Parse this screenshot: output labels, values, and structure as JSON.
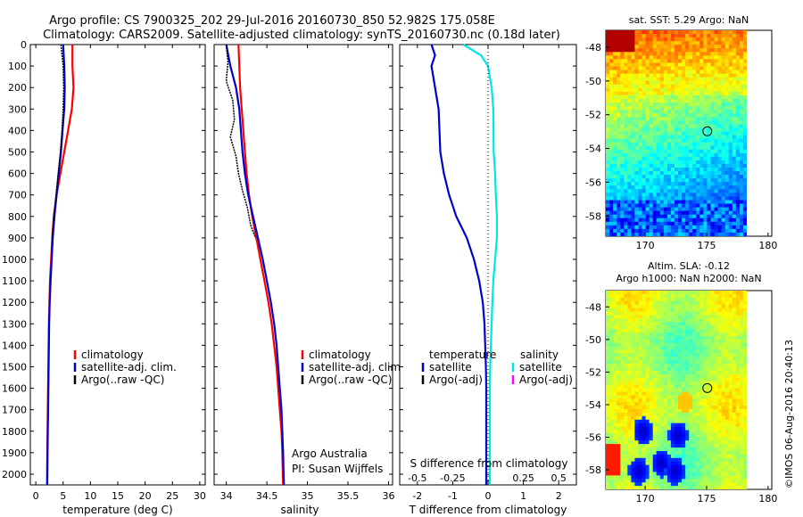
{
  "header": {
    "title_line1": "Argo profile: CS 7900325_202 29-Jul-2016 20160730_850 52.982S 175.058E",
    "title_line2": "Climatology: CARS2009. Satellite-adjusted climatology: synTS_20160730.nc (0.18d later)"
  },
  "footer_stamp": "©IMOS 06-Aug-2016 20:40:13",
  "colors": {
    "climatology": "#ff0000",
    "satellite": "#0000cc",
    "argo": "#000000",
    "salinity_sat": "#00e5e5",
    "salinity_argo": "#ff00ff"
  },
  "chart_data": [
    {
      "type": "line",
      "panel": "temperature",
      "xlabel": "temperature (deg C)",
      "ylabel": "",
      "xlim": [
        -1,
        31
      ],
      "ylim": [
        2050,
        0
      ],
      "xticks": [
        0,
        5,
        10,
        15,
        20,
        25,
        30
      ],
      "yticks": [
        0,
        100,
        200,
        300,
        400,
        500,
        600,
        700,
        800,
        900,
        1000,
        1100,
        1200,
        1300,
        1400,
        1500,
        1600,
        1700,
        1800,
        1900,
        2000
      ],
      "legend": [
        "climatology",
        "satellite-adj. clim.",
        "Argo(..raw -QC)"
      ],
      "legend_position": "bottom-right",
      "series": [
        {
          "name": "climatology",
          "color": "#ff0000",
          "x": [
            6.7,
            6.7,
            6.9,
            6.6,
            5.9,
            5.2,
            4.5,
            3.8,
            3.3,
            3.0,
            2.8,
            2.6,
            2.5,
            2.4,
            2.35,
            2.3,
            2.25,
            2.2,
            2.15,
            2.1,
            2.05
          ],
          "y": [
            0,
            100,
            200,
            300,
            400,
            500,
            600,
            700,
            800,
            900,
            1000,
            1100,
            1200,
            1300,
            1400,
            1500,
            1600,
            1700,
            1800,
            1900,
            2050
          ]
        },
        {
          "name": "satellite-adj. clim.",
          "color": "#0000cc",
          "x": [
            5.0,
            5.2,
            5.3,
            5.2,
            4.9,
            4.6,
            4.2,
            3.8,
            3.4,
            3.1,
            2.9,
            2.7,
            2.55,
            2.45,
            2.4,
            2.35,
            2.3,
            2.25,
            2.2,
            2.15,
            2.1
          ],
          "y": [
            0,
            100,
            200,
            300,
            400,
            500,
            600,
            700,
            800,
            900,
            1000,
            1100,
            1200,
            1300,
            1400,
            1500,
            1600,
            1700,
            1800,
            1900,
            2050
          ]
        },
        {
          "name": "Argo(..raw -QC)",
          "color": "#000000",
          "x": [
            4.6,
            5.0,
            5.1,
            5.0,
            4.8,
            4.5,
            4.1,
            3.7,
            3.3,
            3.0
          ],
          "y": [
            0,
            100,
            200,
            300,
            400,
            500,
            600,
            700,
            800,
            900
          ]
        }
      ]
    },
    {
      "type": "line",
      "panel": "salinity",
      "xlabel": "salinity",
      "xlim": [
        33.85,
        36.05
      ],
      "ylim": [
        2050,
        0
      ],
      "xticks": [
        34,
        34.5,
        35,
        35.5,
        36
      ],
      "legend": [
        "climatology",
        "satellite-adj. clim.",
        "Argo(..raw -QC)"
      ],
      "legend_position": "bottom-right",
      "annotation": [
        "Argo Australia",
        "PI: Susan Wijffels"
      ],
      "series": [
        {
          "name": "climatology",
          "color": "#ff0000",
          "x": [
            34.15,
            34.16,
            34.17,
            34.19,
            34.21,
            34.23,
            34.25,
            34.28,
            34.32,
            34.37,
            34.42,
            34.47,
            34.52,
            34.56,
            34.59,
            34.62,
            34.64,
            34.66,
            34.68,
            34.69,
            34.7
          ],
          "y": [
            0,
            100,
            200,
            300,
            400,
            500,
            600,
            700,
            800,
            900,
            1000,
            1100,
            1200,
            1300,
            1400,
            1500,
            1600,
            1700,
            1800,
            1900,
            2050
          ]
        },
        {
          "name": "satellite-adj. clim.",
          "color": "#0000cc",
          "x": [
            34.0,
            34.05,
            34.12,
            34.16,
            34.18,
            34.2,
            34.23,
            34.27,
            34.33,
            34.39,
            34.45,
            34.5,
            34.55,
            34.59,
            34.62,
            34.64,
            34.66,
            34.68,
            34.69,
            34.7,
            34.71
          ],
          "y": [
            0,
            100,
            200,
            300,
            400,
            500,
            600,
            700,
            800,
            900,
            1000,
            1100,
            1200,
            1300,
            1400,
            1500,
            1600,
            1700,
            1800,
            1900,
            2050
          ]
        },
        {
          "name": "Argo(..raw -QC)",
          "color": "#000000",
          "x": [
            34.0,
            34.02,
            34.0,
            34.08,
            34.1,
            34.05,
            34.12,
            34.15,
            34.2,
            34.26,
            34.3,
            34.36
          ],
          "y": [
            0,
            80,
            170,
            260,
            350,
            430,
            520,
            600,
            680,
            760,
            840,
            900
          ]
        }
      ]
    },
    {
      "type": "line",
      "panel": "difference",
      "xlabel": "T difference from climatology",
      "xlabel_top": "S difference from climatology",
      "xlim": [
        -2.5,
        2.5
      ],
      "ylim": [
        2050,
        0
      ],
      "xticks": [
        -2,
        -1,
        0,
        1,
        2
      ],
      "xticks_top": [
        "-0.5",
        "-0.25",
        "0",
        "0.25",
        "0.5"
      ],
      "legend_temperature": {
        "title": "temperature",
        "entries": [
          "satellite",
          "Argo(-adj)"
        ]
      },
      "legend_salinity": {
        "title": "salinity",
        "entries": [
          "satellite",
          "Argo(-adj)"
        ]
      },
      "series": [
        {
          "name": "temperature satellite",
          "color": "#0000cc",
          "x": [
            -1.6,
            -1.5,
            -1.6,
            -1.5,
            -1.4,
            -1.35,
            -1.25,
            -1.1,
            -0.9,
            -0.6,
            -0.4,
            -0.25,
            -0.15,
            -0.1,
            -0.08,
            -0.06,
            -0.05,
            -0.05,
            -0.05,
            -0.05,
            -0.05
          ],
          "y": [
            0,
            50,
            100,
            200,
            300,
            500,
            600,
            700,
            800,
            900,
            1000,
            1100,
            1200,
            1300,
            1400,
            1500,
            1600,
            1700,
            1800,
            1900,
            2050
          ]
        },
        {
          "name": "salinity satellite",
          "color": "#00e5e5",
          "x": [
            -0.7,
            -0.2,
            0.0,
            0.1,
            0.15,
            0.16,
            0.2,
            0.22,
            0.25,
            0.25,
            0.2,
            0.15,
            0.12,
            0.1,
            0.08,
            0.06,
            0.05,
            0.05,
            0.05,
            0.05,
            0.05
          ],
          "y": [
            0,
            50,
            100,
            200,
            300,
            500,
            600,
            700,
            800,
            900,
            1000,
            1100,
            1200,
            1300,
            1400,
            1500,
            1600,
            1700,
            1800,
            1900,
            2050
          ]
        }
      ]
    },
    {
      "type": "heatmap",
      "panel": "map-sst",
      "title": "sat. SST: 5.29 Argo: NaN",
      "xlim": [
        166.8,
        180.3
      ],
      "ylim": [
        -59.2,
        -47
      ],
      "xticks": [
        170,
        175,
        180
      ],
      "yticks": [
        -48,
        -50,
        -52,
        -54,
        -56,
        -58
      ],
      "marker": {
        "lon": 175.058,
        "lat": -52.982
      }
    },
    {
      "type": "heatmap",
      "panel": "map-sla",
      "title_line1": "Altim. SLA: -0.12",
      "title_line2": "Argo h1000: NaN h2000: NaN",
      "xlim": [
        166.8,
        180.3
      ],
      "ylim": [
        -59.2,
        -47
      ],
      "xticks": [
        170,
        175,
        180
      ],
      "yticks": [
        -48,
        -50,
        -52,
        -54,
        -56,
        -58
      ],
      "marker": {
        "lon": 175.058,
        "lat": -52.982
      }
    }
  ]
}
